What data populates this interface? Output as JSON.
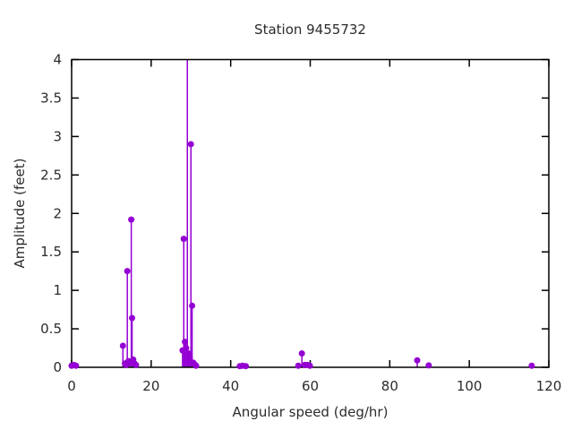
{
  "title": "Station 9455732",
  "colors": {
    "series": "#9400d3",
    "axis": "#000000",
    "text": "#2b2b2b",
    "background": "#ffffff"
  },
  "chart_data": {
    "type": "scatter",
    "style": "impulses-with-points",
    "title": "Station 9455732",
    "xlabel": "Angular speed (deg/hr)",
    "ylabel": "Amplitude (feet)",
    "xlim": [
      0,
      120
    ],
    "ylim": [
      0,
      4
    ],
    "xticks": [
      0,
      20,
      40,
      60,
      80,
      100,
      120
    ],
    "yticks": [
      0,
      0.5,
      1,
      1.5,
      2,
      2.5,
      3,
      3.5,
      4
    ],
    "grid": false,
    "legend": "none",
    "ticks_mirrored": true,
    "clip_to_ylim": true,
    "marker_color": "#9400d3",
    "points": [
      [
        0.0,
        0.02
      ],
      [
        0.6,
        0.03
      ],
      [
        1.1,
        0.02
      ],
      [
        12.9,
        0.28
      ],
      [
        13.4,
        0.05
      ],
      [
        13.7,
        0.03
      ],
      [
        14.0,
        1.25
      ],
      [
        14.3,
        0.08
      ],
      [
        14.6,
        0.06
      ],
      [
        15.0,
        1.92
      ],
      [
        15.2,
        0.64
      ],
      [
        15.5,
        0.1
      ],
      [
        15.8,
        0.05
      ],
      [
        16.2,
        0.03
      ],
      [
        27.9,
        0.22
      ],
      [
        28.2,
        1.67
      ],
      [
        28.5,
        0.33
      ],
      [
        28.8,
        0.25
      ],
      [
        29.1,
        4.5
      ],
      [
        29.4,
        0.18
      ],
      [
        29.7,
        0.12
      ],
      [
        30.0,
        2.9
      ],
      [
        30.3,
        0.8
      ],
      [
        30.6,
        0.06
      ],
      [
        30.9,
        0.04
      ],
      [
        31.3,
        0.02
      ],
      [
        42.3,
        0.015
      ],
      [
        43.0,
        0.02
      ],
      [
        43.8,
        0.015
      ],
      [
        57.0,
        0.02
      ],
      [
        57.9,
        0.18
      ],
      [
        58.6,
        0.03
      ],
      [
        59.3,
        0.03
      ],
      [
        59.9,
        0.02
      ],
      [
        86.9,
        0.09
      ],
      [
        89.8,
        0.025
      ],
      [
        115.7,
        0.02
      ]
    ]
  }
}
